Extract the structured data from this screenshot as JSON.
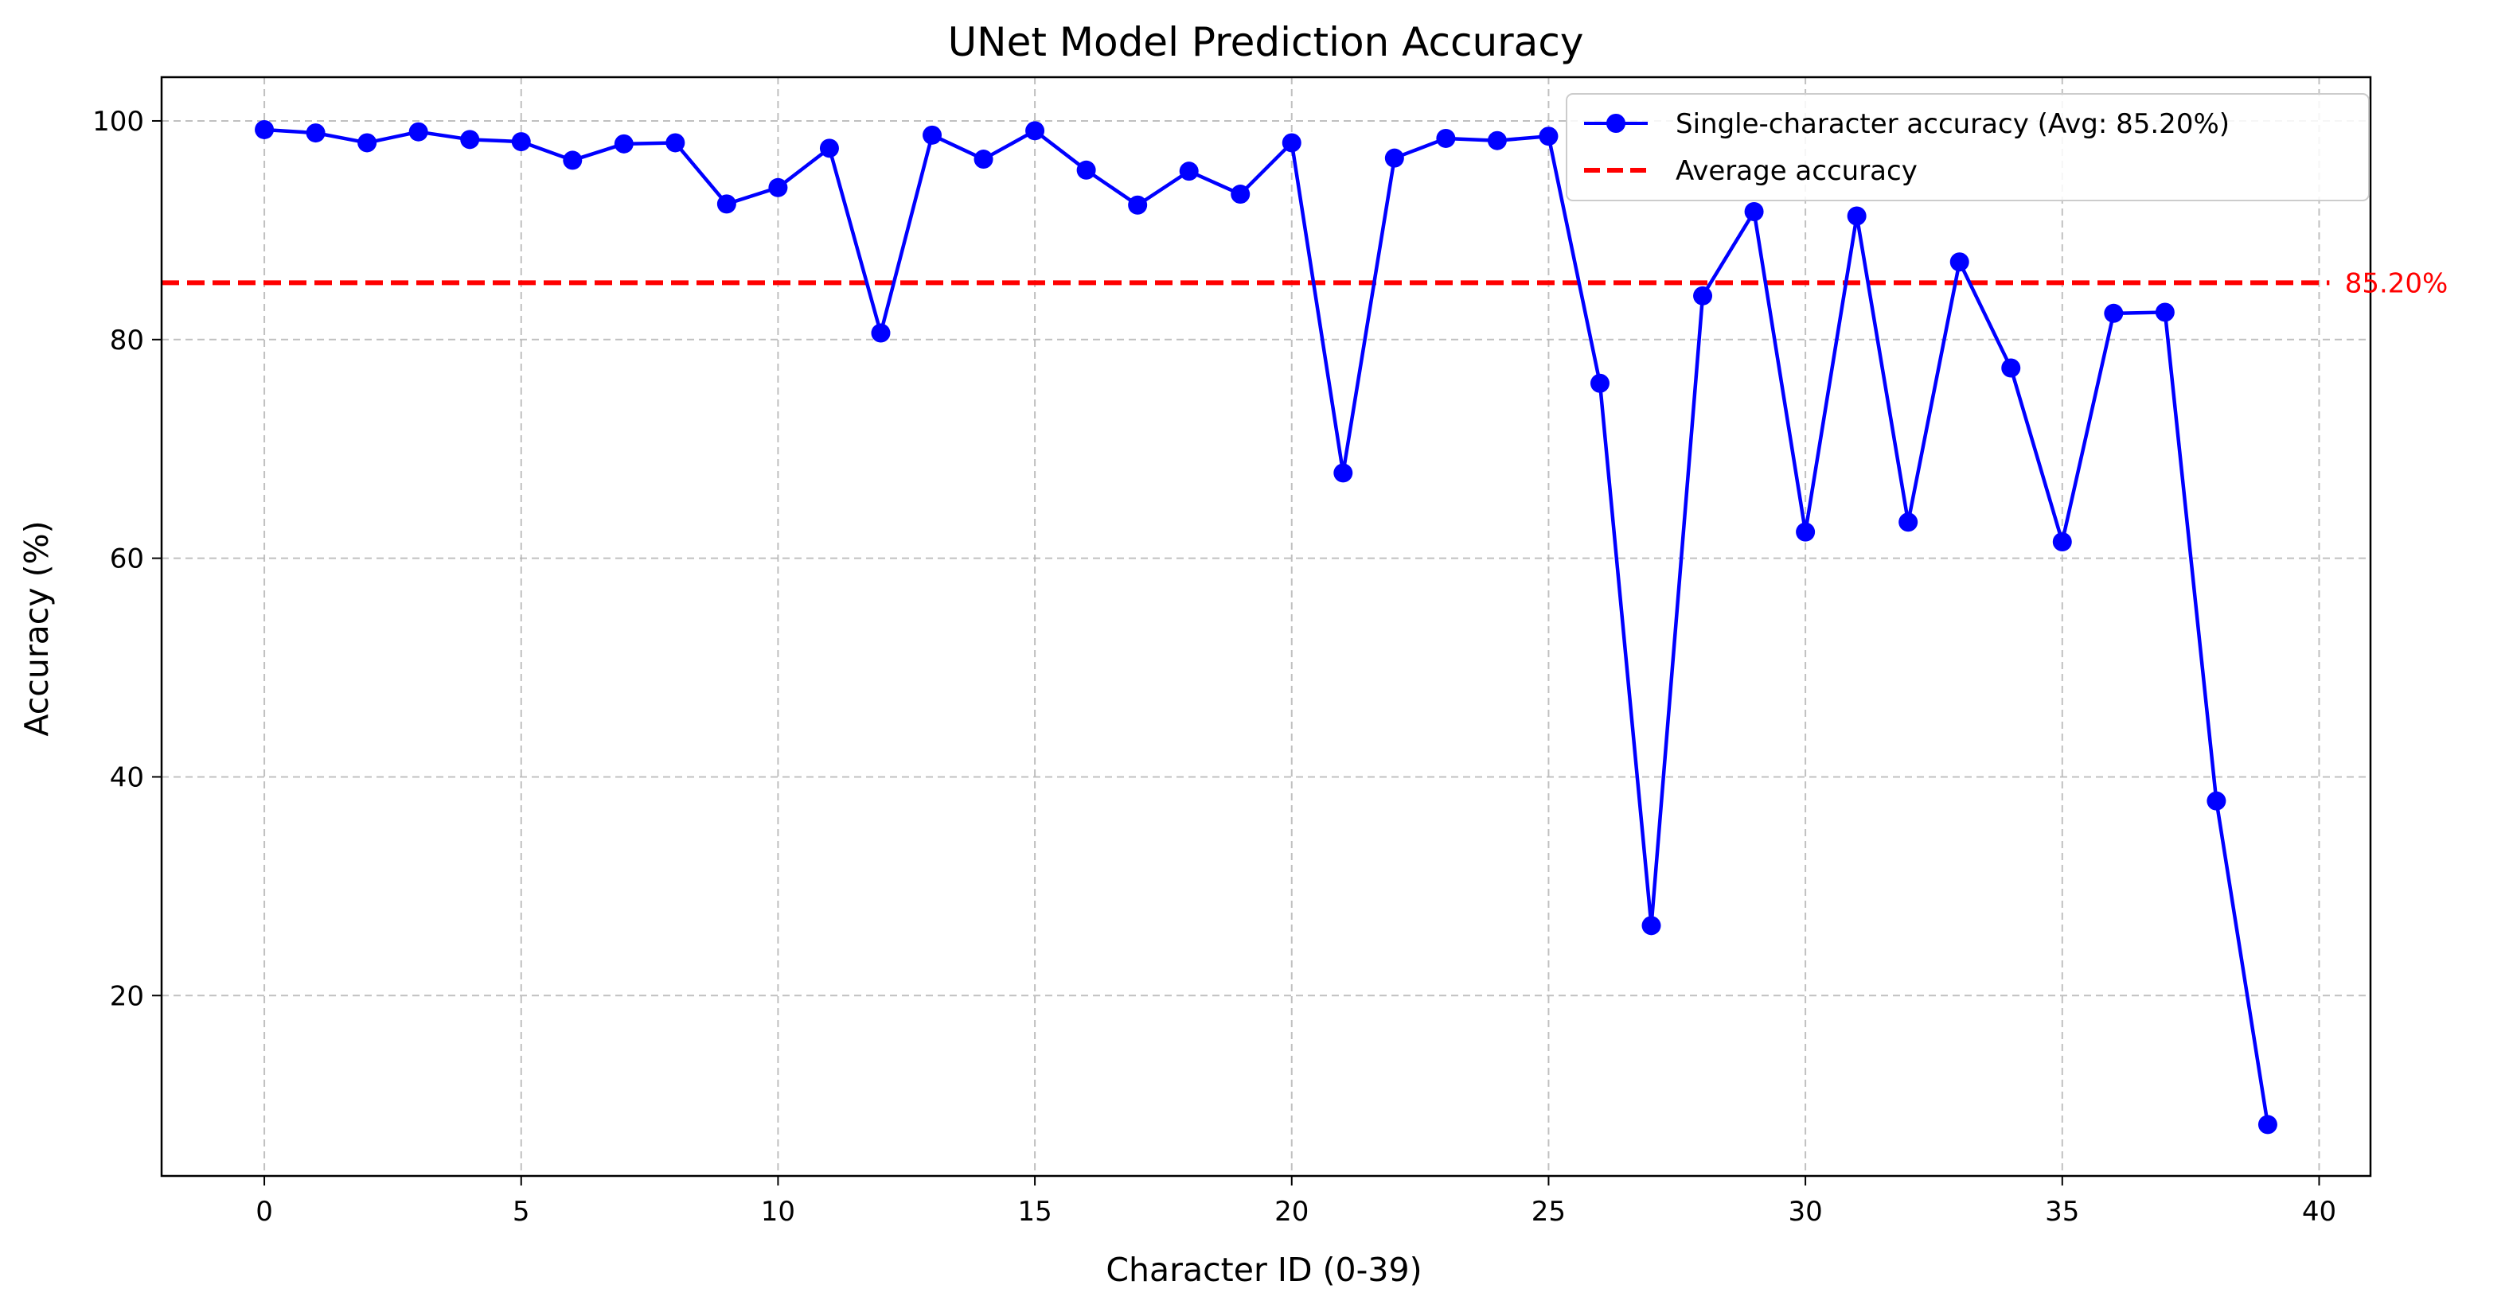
{
  "chart_data": {
    "type": "line",
    "title": "UNet Model Prediction Accuracy",
    "xlabel": "Character ID (0-39)",
    "ylabel": "Accuracy (%)",
    "xlim": [
      -2,
      41
    ],
    "ylim": [
      3.5,
      104
    ],
    "x_ticks": [
      0,
      5,
      10,
      15,
      20,
      25,
      30,
      35,
      40
    ],
    "y_ticks": [
      20,
      40,
      60,
      80,
      100
    ],
    "grid": true,
    "legend_position": "upper right",
    "series": [
      {
        "name": "Single-character accuracy (Avg: 85.20%)",
        "color": "#0000ff",
        "marker": "circle",
        "x": [
          0,
          1,
          2,
          3,
          4,
          5,
          6,
          7,
          8,
          9,
          10,
          11,
          12,
          13,
          14,
          15,
          16,
          17,
          18,
          19,
          20,
          21,
          22,
          23,
          24,
          25,
          26,
          27,
          28,
          29,
          30,
          31,
          32,
          33,
          34,
          35,
          36,
          37,
          38,
          39
        ],
        "values": [
          99.2,
          98.9,
          98.0,
          99.0,
          98.3,
          98.1,
          96.4,
          97.9,
          98.0,
          92.4,
          93.9,
          97.5,
          80.6,
          98.7,
          96.5,
          99.1,
          95.5,
          92.3,
          95.4,
          93.3,
          98.0,
          67.8,
          96.6,
          98.4,
          98.2,
          98.6,
          76.0,
          26.4,
          84.0,
          91.7,
          62.4,
          91.3,
          63.3,
          87.1,
          77.4,
          61.5,
          82.4,
          82.5,
          37.8,
          8.2
        ]
      },
      {
        "name": "Average accuracy",
        "color": "#ff0000",
        "style": "dashed",
        "y": 85.2
      }
    ],
    "annotations": [
      {
        "text": "85.20%",
        "y": 85.2,
        "color": "#ff0000"
      }
    ]
  }
}
